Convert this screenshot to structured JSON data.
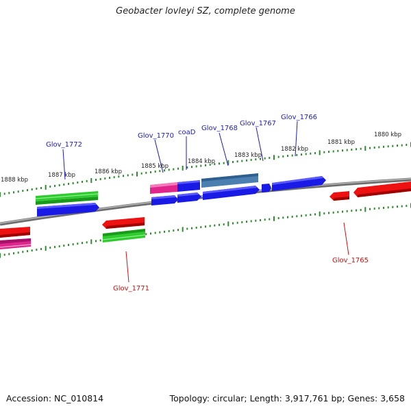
{
  "title": "Geobacter lovleyi SZ, complete genome",
  "footer": {
    "accession": "Accession: NC_010814",
    "summary": "Topology: circular; Length: 3,917,761 bp; Genes: 3,658"
  },
  "colors": {
    "backbone": "#7a7a7a",
    "tick": "#2e8b2e",
    "forward_label": "#1a1ad0",
    "reverse_label": "#cc1111",
    "blue": "#1a1ae6",
    "steel": "#4a7fb0",
    "green": "#33bb33",
    "magenta": "#e0268c",
    "red": "#ee1111"
  },
  "scale_labels": [
    "1888 kbp",
    "1887 kbp",
    "1886 kbp",
    "1885 kbp",
    "1884 kbp",
    "1883 kbp",
    "1882 kbp",
    "1881 kbp",
    "1880 kbp"
  ],
  "gene_labels": {
    "forward": [
      "Glov_1772",
      "Glov_1770",
      "coaD",
      "Glov_1768",
      "Glov_1767",
      "Glov_1766"
    ],
    "reverse": [
      "Glov_1771",
      "Glov_1765"
    ]
  }
}
